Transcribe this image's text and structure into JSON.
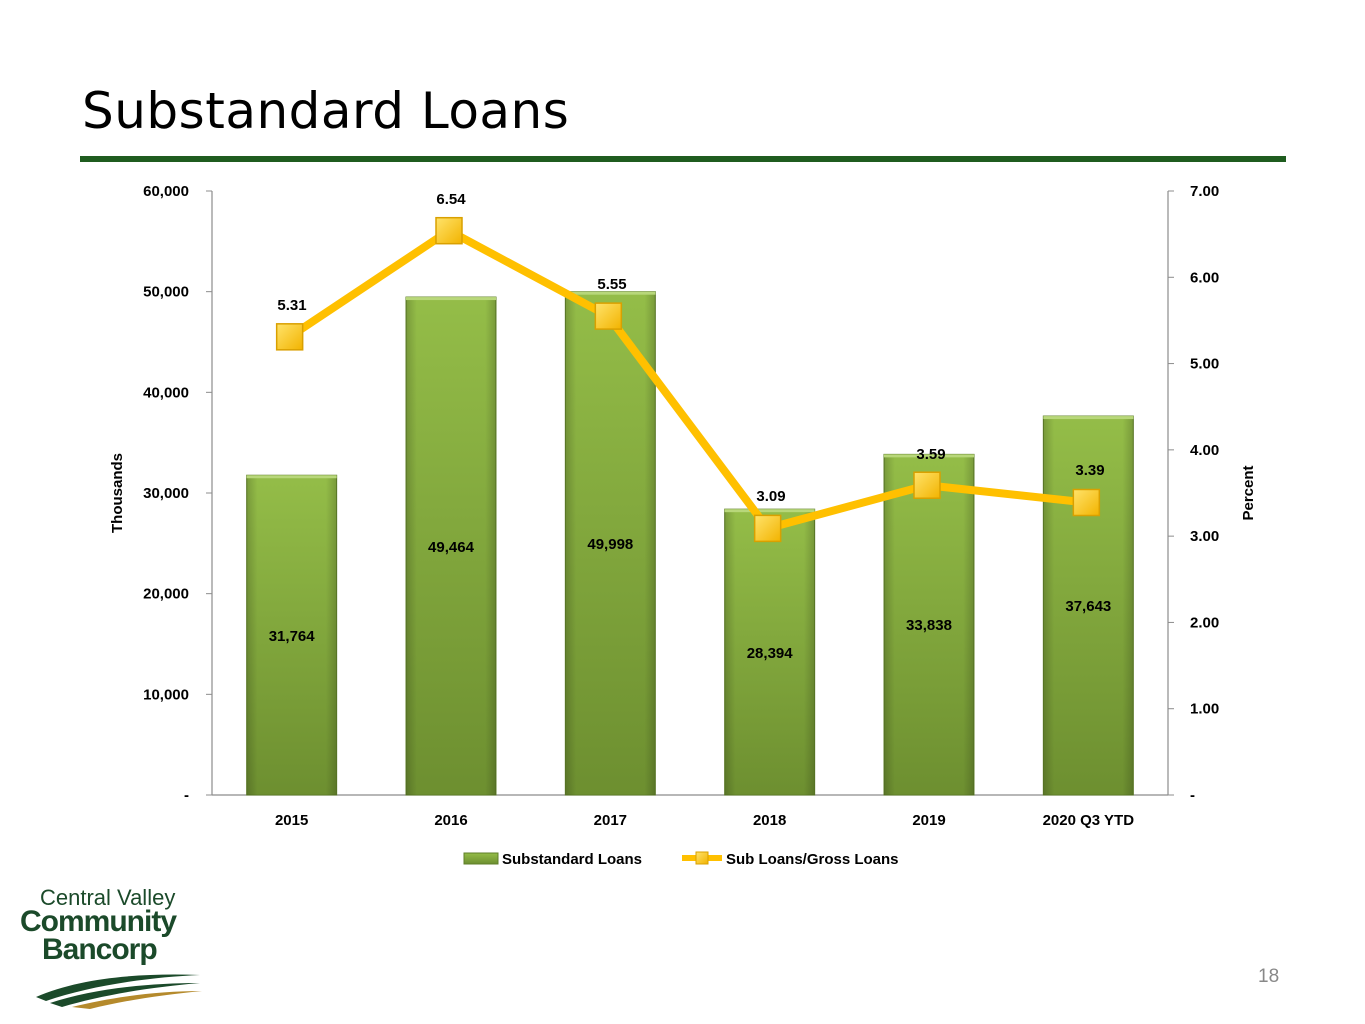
{
  "slide": {
    "title": "Substandard Loans",
    "page_number": "18",
    "accent_color": "#1f5c1f"
  },
  "logo": {
    "line1": "Central Valley",
    "line2": "Community",
    "line3": "Bancorp",
    "color": "#1b4a2a",
    "swoosh_colors": [
      "#1b4a2a",
      "#b58a2c"
    ]
  },
  "chart_data": {
    "type": "bar",
    "categories": [
      "2015",
      "2016",
      "2017",
      "2018",
      "2019",
      "2020 Q3 YTD"
    ],
    "series": [
      {
        "name": "Substandard Loans",
        "type": "bar",
        "axis": "left",
        "values": [
          31764,
          49464,
          49998,
          28394,
          33838,
          37643
        ],
        "labels": [
          "31,764",
          "49,464",
          "49,998",
          "28,394",
          "33,838",
          "37,643"
        ],
        "color": "#7fa23a"
      },
      {
        "name": "Sub Loans/Gross Loans",
        "type": "line",
        "axis": "right",
        "values": [
          5.31,
          6.54,
          5.55,
          3.09,
          3.59,
          3.39
        ],
        "labels": [
          "5.31",
          "6.54",
          "5.55",
          "3.09",
          "3.59",
          "3.39"
        ],
        "color": "#ffc000"
      }
    ],
    "y_left": {
      "label": "Thousands",
      "range": [
        0,
        60000
      ],
      "ticks": [
        0,
        10000,
        20000,
        30000,
        40000,
        50000,
        60000
      ],
      "tick_labels": [
        "-",
        "10,000",
        "20,000",
        "30,000",
        "40,000",
        "50,000",
        "60,000"
      ]
    },
    "y_right": {
      "label": "Percent",
      "range": [
        0,
        7
      ],
      "ticks": [
        0,
        1,
        2,
        3,
        4,
        5,
        6,
        7
      ],
      "tick_labels": [
        "-",
        "1.00",
        "2.00",
        "3.00",
        "4.00",
        "5.00",
        "6.00",
        "7.00"
      ]
    },
    "grid": false,
    "legend_position": "bottom"
  }
}
